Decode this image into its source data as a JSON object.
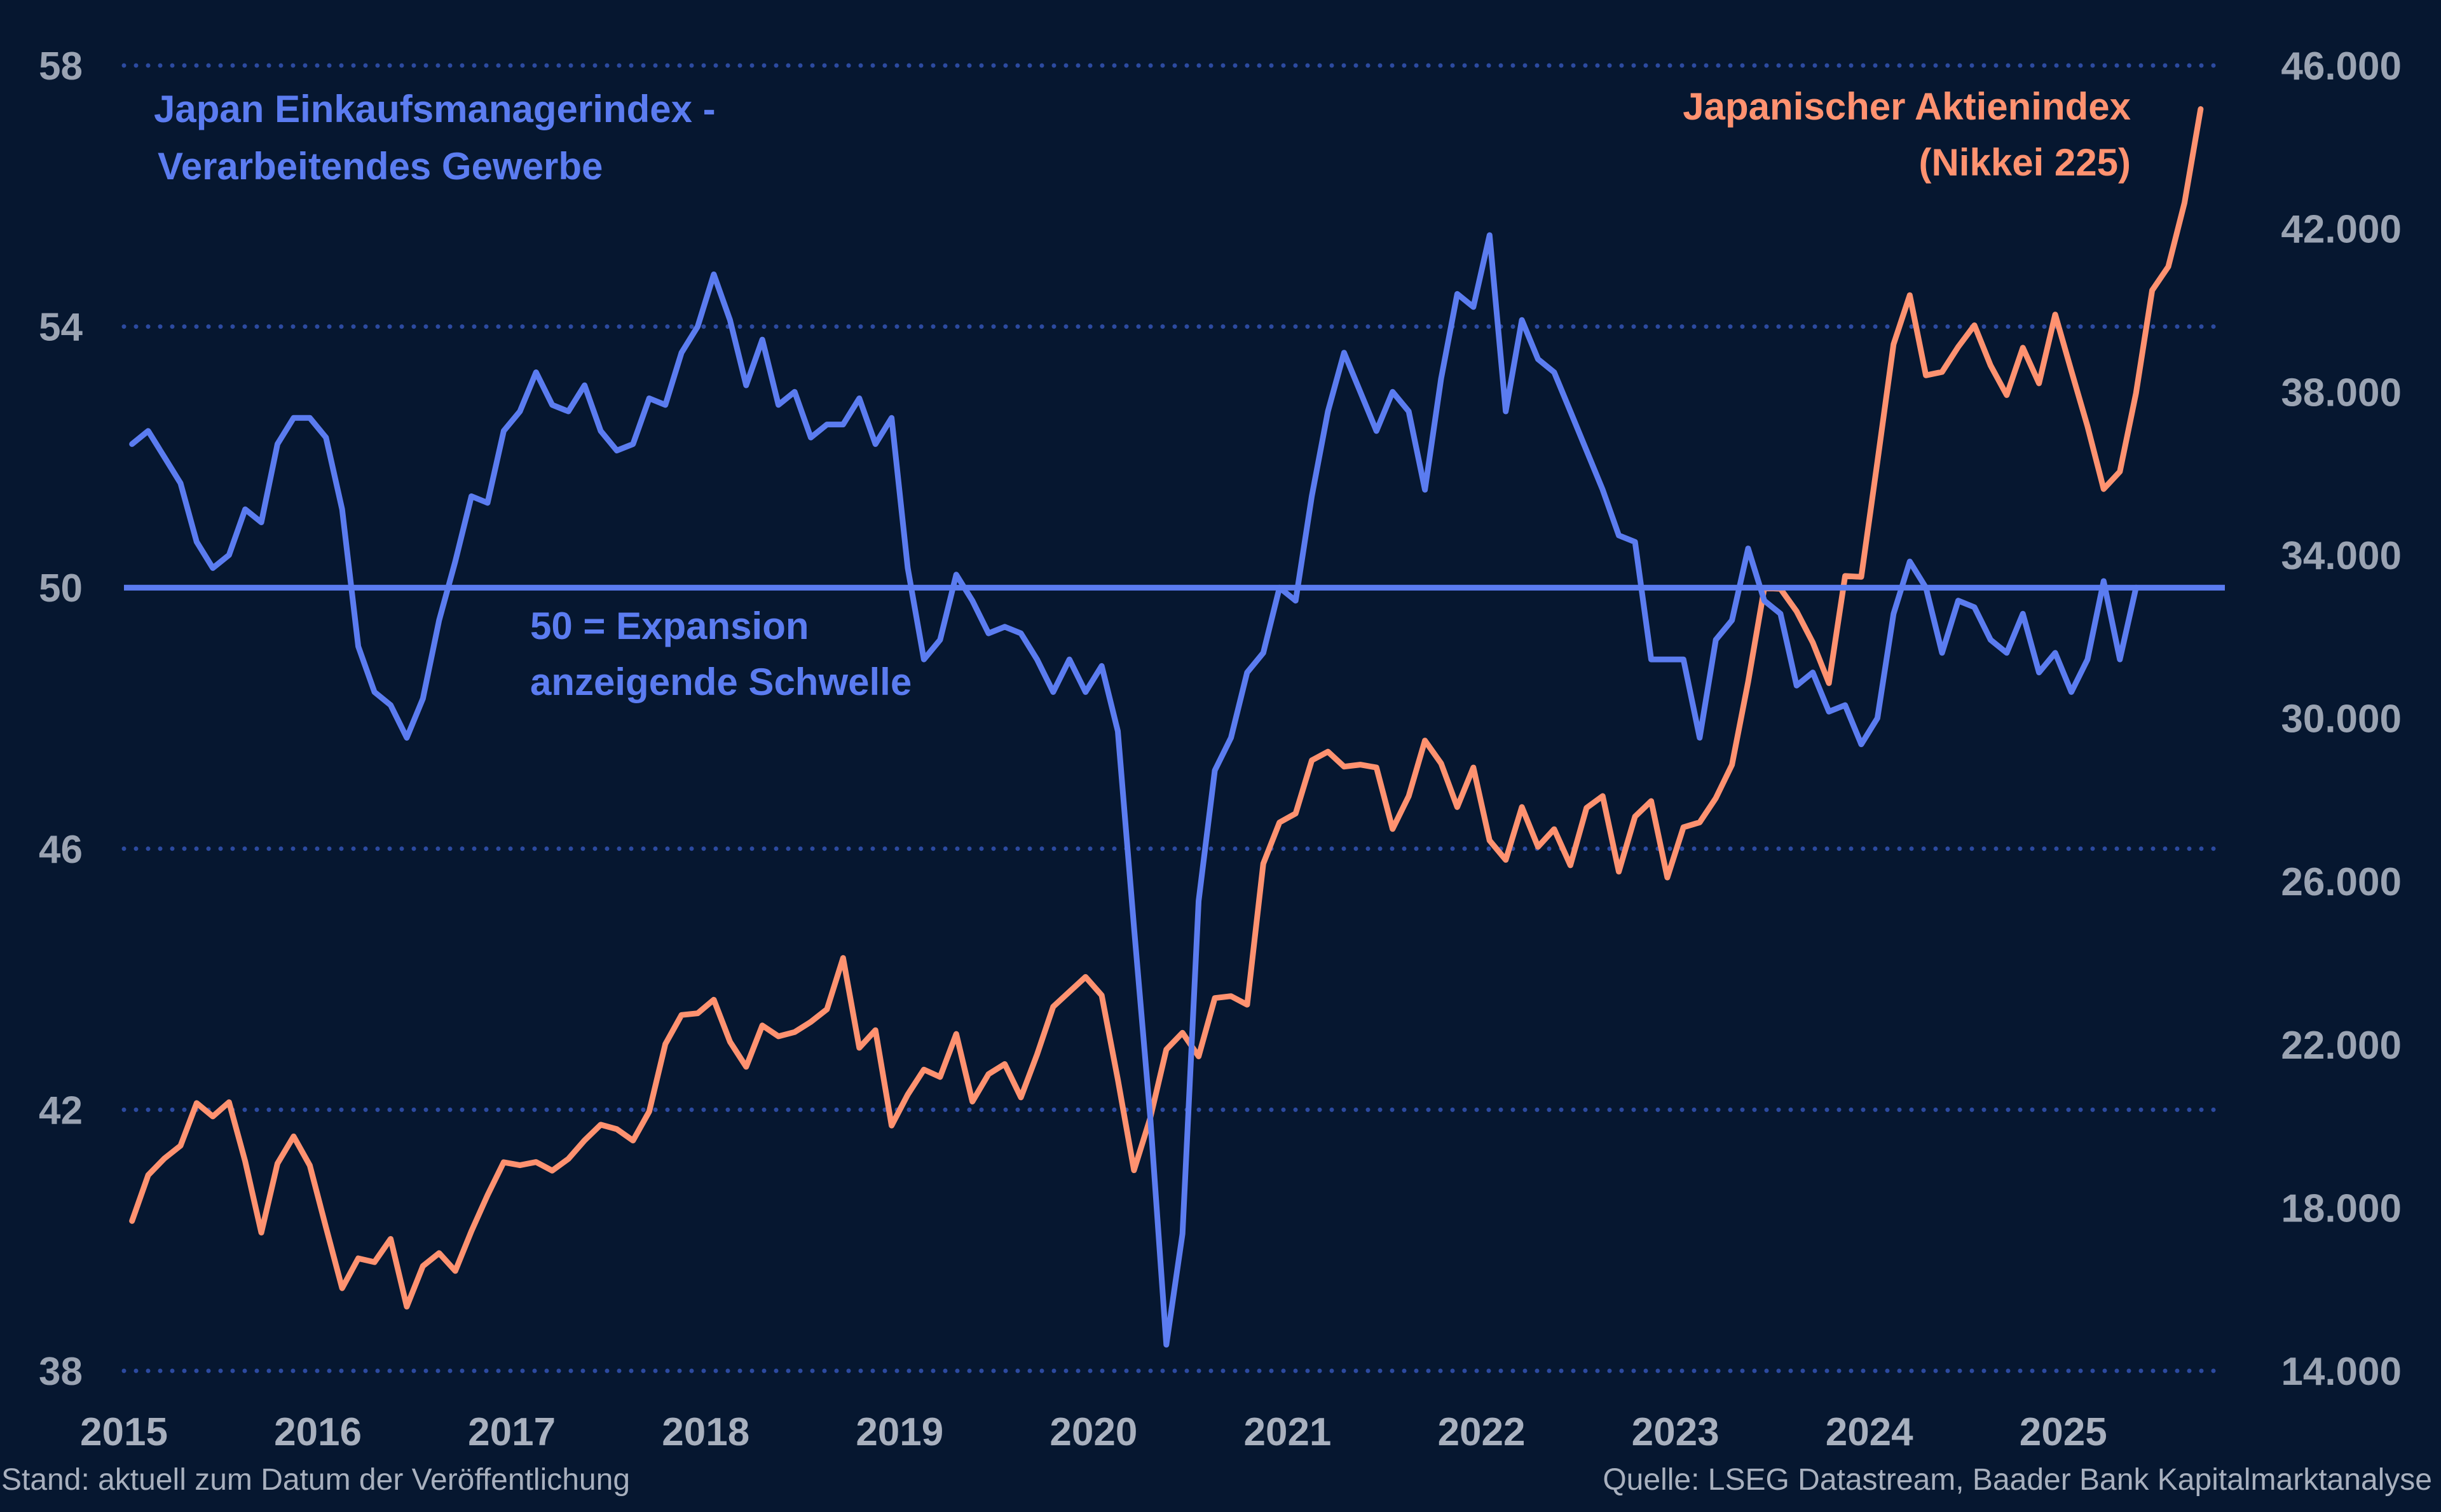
{
  "chart_data": {
    "type": "line",
    "x_range": [
      "2015-01",
      "2025-10"
    ],
    "x_ticks": [
      "2015",
      "2016",
      "2017",
      "2018",
      "2019",
      "2020",
      "2021",
      "2022",
      "2023",
      "2024",
      "2025"
    ],
    "y_left": {
      "ticks": [
        "58",
        "54",
        "50",
        "46",
        "42",
        "38"
      ],
      "range": [
        38,
        58
      ]
    },
    "y_right": {
      "ticks": [
        "46.000",
        "42.000",
        "38.000",
        "34.000",
        "30.000",
        "26.000",
        "22.000",
        "18.000",
        "14.000"
      ],
      "range": [
        14000,
        46000
      ]
    },
    "grid": "horizontal dotted",
    "threshold": {
      "value": 50,
      "label_line1": "50 = Expansion",
      "label_line2": "anzeigende Schwelle"
    },
    "series": [
      {
        "name_line1": "Japan Einkaufsmanagerindex -",
        "name_line2": "Verarbeitendes Gewerbe",
        "axis": "left",
        "color": "#5b7cf0",
        "frequency": "monthly",
        "start": "2015-01",
        "values": [
          52.2,
          52.4,
          52.0,
          51.6,
          50.7,
          50.3,
          50.5,
          51.2,
          51.0,
          52.2,
          52.6,
          52.6,
          52.3,
          51.2,
          49.1,
          48.4,
          48.2,
          47.7,
          48.3,
          49.5,
          50.4,
          51.4,
          51.3,
          52.4,
          52.7,
          53.3,
          52.8,
          52.7,
          53.1,
          52.4,
          52.1,
          52.2,
          52.9,
          52.8,
          53.6,
          54.0,
          54.8,
          54.1,
          53.1,
          53.8,
          52.8,
          53.0,
          52.3,
          52.5,
          52.5,
          52.9,
          52.2,
          52.6,
          50.3,
          48.9,
          49.2,
          50.2,
          49.8,
          49.3,
          49.4,
          49.3,
          48.9,
          48.4,
          48.9,
          48.4,
          48.8,
          47.8,
          44.8,
          41.9,
          38.4,
          40.1,
          45.2,
          47.2,
          47.7,
          48.7,
          49.0,
          50.0,
          49.8,
          51.4,
          52.7,
          53.6,
          53.0,
          52.4,
          53.0,
          52.7,
          51.5,
          53.2,
          54.5,
          54.3,
          55.4,
          52.7,
          54.1,
          53.5,
          53.3,
          52.7,
          52.1,
          51.5,
          50.8,
          50.7,
          48.9,
          48.9,
          48.9,
          47.7,
          49.2,
          49.5,
          50.6,
          49.8,
          49.6,
          48.5,
          48.7,
          48.1,
          48.2,
          47.6,
          48.0,
          49.6,
          50.4,
          50.0,
          49.0,
          49.8,
          49.7,
          49.2,
          49.0,
          49.6,
          48.7,
          49.0,
          48.4,
          48.9,
          50.1,
          48.9,
          50.0
        ]
      },
      {
        "name_line1": "Japanischer Aktienindex",
        "name_line2": "(Nikkei 225)",
        "axis": "right",
        "color": "#ff9270",
        "frequency": "monthly",
        "start": "2015-01",
        "values": [
          17674,
          18797,
          19206,
          19520,
          20563,
          20236,
          20585,
          19136,
          17388,
          19083,
          19747,
          19034,
          17518,
          16026,
          16758,
          16666,
          17234,
          15575,
          16569,
          16887,
          16449,
          17425,
          18308,
          19114,
          19041,
          19119,
          18909,
          19197,
          19650,
          20033,
          19925,
          19646,
          20356,
          22011,
          22724,
          22764,
          23098,
          22068,
          21454,
          22467,
          22201,
          22305,
          22554,
          22865,
          24120,
          21920,
          22351,
          20014,
          20773,
          21385,
          21205,
          22258,
          20601,
          21275,
          21521,
          20704,
          21755,
          22927,
          23293,
          23656,
          23205,
          21142,
          18917,
          20193,
          21877,
          22288,
          21710,
          23139,
          23185,
          22977,
          26433,
          27444,
          27663,
          28966,
          29178,
          28813,
          28860,
          28791,
          27283,
          28089,
          29452,
          28892,
          27821,
          28791,
          27001,
          26526,
          27821,
          26847,
          27279,
          26393,
          27801,
          28091,
          26237,
          27587,
          27968,
          26094,
          27327,
          27445,
          28041,
          28856,
          30887,
          33189,
          33172,
          32619,
          31857,
          30859,
          33486,
          33464,
          36286,
          39166,
          40369,
          38405,
          38487,
          39101,
          39631,
          38647,
          37919,
          39081,
          38208,
          39894,
          38513,
          37155,
          35617,
          36045,
          37965,
          40487,
          41069,
          42633,
          44932
        ]
      }
    ],
    "footer_left": "Stand: aktuell zum Datum der Veröffentlichung",
    "footer_right": "Quelle: LSEG Datastream, Baader Bank Kapitalmarktanalyse"
  }
}
